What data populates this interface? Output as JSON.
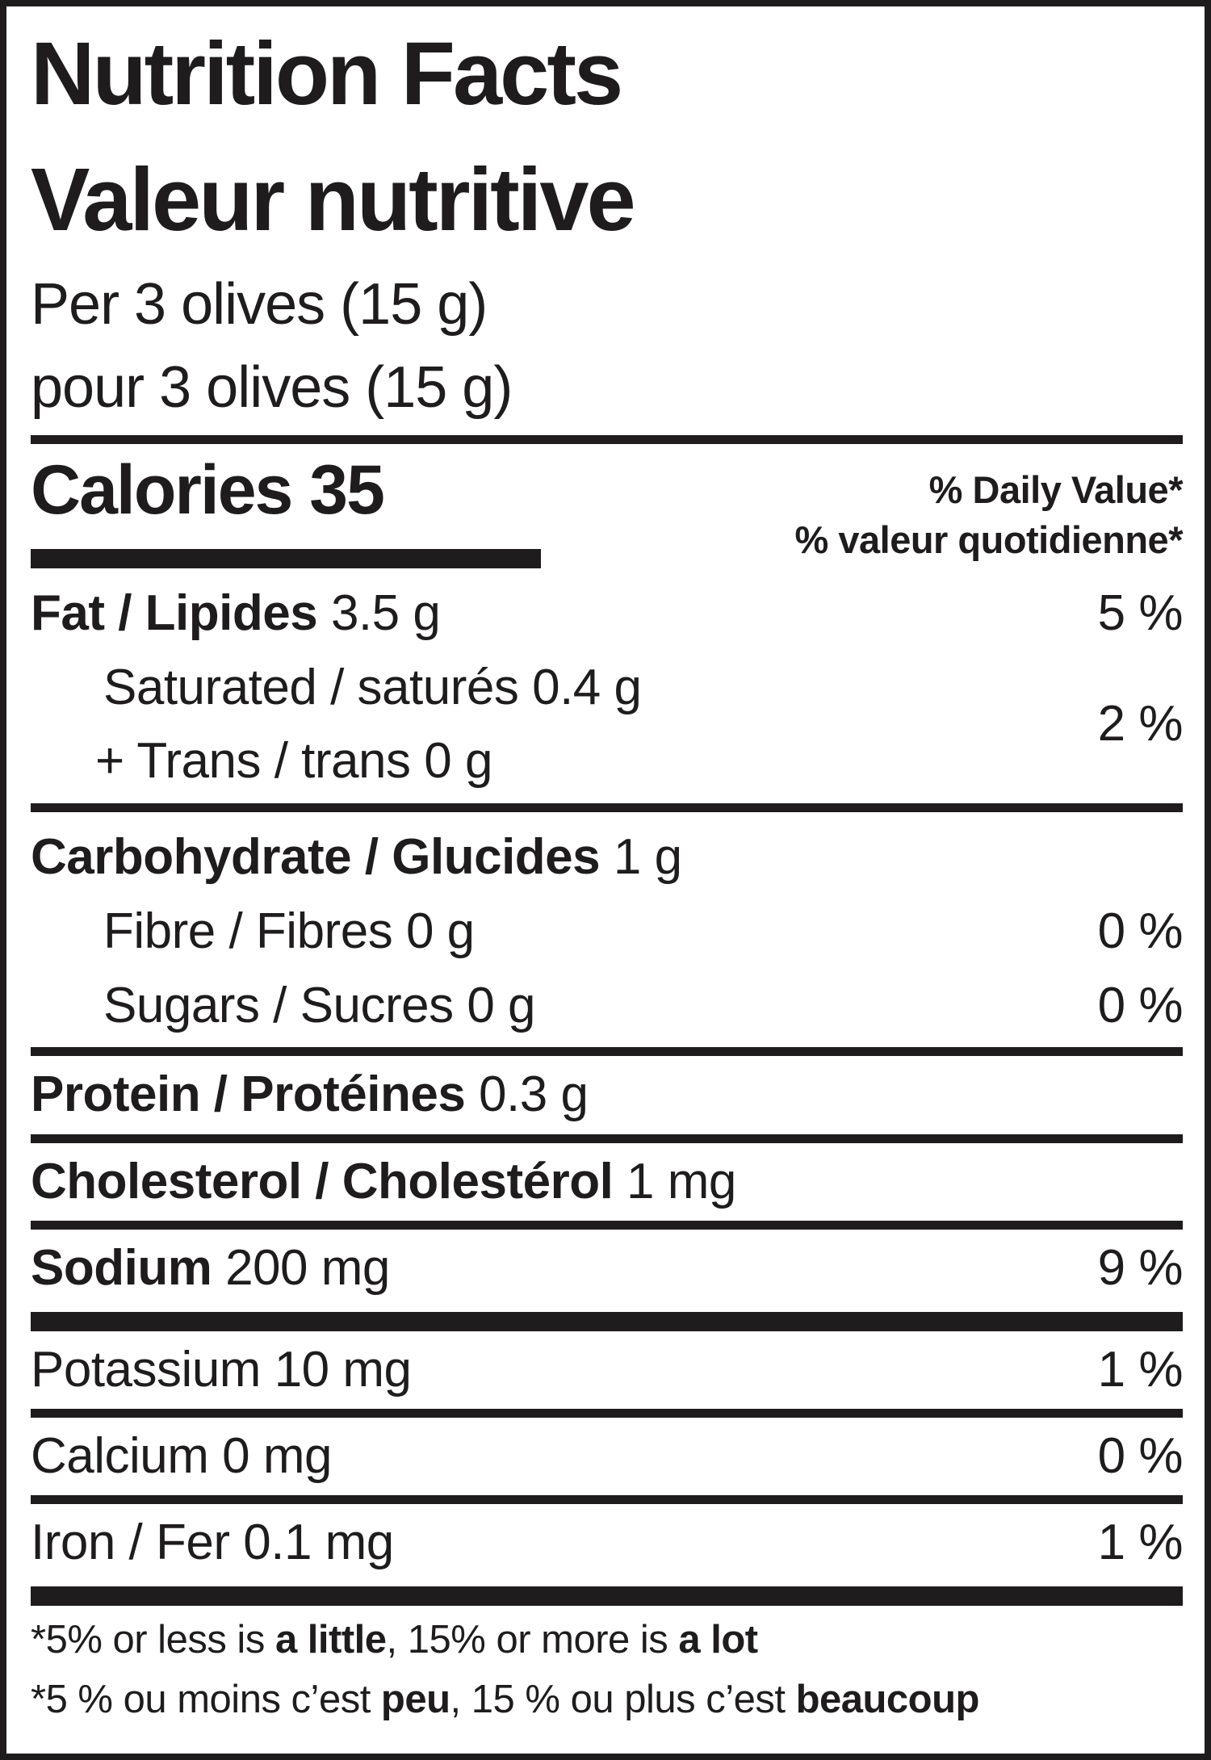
{
  "header": {
    "title_en": "Nutrition Facts",
    "title_fr": "Valeur nutritive",
    "serving_en": "Per 3 olives (15 g)",
    "serving_fr": "pour 3 olives (15 g)"
  },
  "calories": {
    "label": "Calories",
    "value": "35",
    "dv_header_en": "% Daily Value*",
    "dv_header_fr": "% valeur quotidienne*"
  },
  "nutrients": {
    "fat": {
      "label": "Fat / Lipides",
      "amount": "3.5 g",
      "pct": "5 %"
    },
    "saturated": {
      "label": "Saturated / saturés",
      "amount": "0.4 g"
    },
    "trans": {
      "label": "+ Trans / trans",
      "amount": "0 g"
    },
    "sat_trans_pct": "2 %",
    "carbohydrate": {
      "label": "Carbohydrate / Glucides",
      "amount": "1 g"
    },
    "fibre": {
      "label": "Fibre / Fibres",
      "amount": "0 g",
      "pct": "0 %"
    },
    "sugars": {
      "label": "Sugars / Sucres",
      "amount": "0 g",
      "pct": "0 %"
    },
    "protein": {
      "label": "Protein / Protéines",
      "amount": "0.3 g"
    },
    "cholesterol": {
      "label": "Cholesterol / Cholestérol",
      "amount": "1 mg"
    },
    "sodium": {
      "label": "Sodium",
      "amount": "200 mg",
      "pct": "9 %"
    },
    "potassium": {
      "label": "Potassium",
      "amount": "10 mg",
      "pct": "1 %"
    },
    "calcium": {
      "label": "Calcium",
      "amount": "0 mg",
      "pct": "0 %"
    },
    "iron": {
      "label": "Iron / Fer",
      "amount": "0.1 mg",
      "pct": "1 %"
    }
  },
  "footnotes": {
    "en": [
      {
        "text": "*5% or less is ",
        "bold": false
      },
      {
        "text": "a little",
        "bold": true
      },
      {
        "text": ", 15% or more is ",
        "bold": false
      },
      {
        "text": "a lot",
        "bold": true
      }
    ],
    "fr": [
      {
        "text": "*5 % ou moins c’est ",
        "bold": false
      },
      {
        "text": "peu",
        "bold": true
      },
      {
        "text": ", 15 % ou plus c’est ",
        "bold": false
      },
      {
        "text": "beaucoup",
        "bold": true
      }
    ]
  },
  "colors": {
    "text": "#1e1c1c",
    "background": "#ffffff"
  }
}
